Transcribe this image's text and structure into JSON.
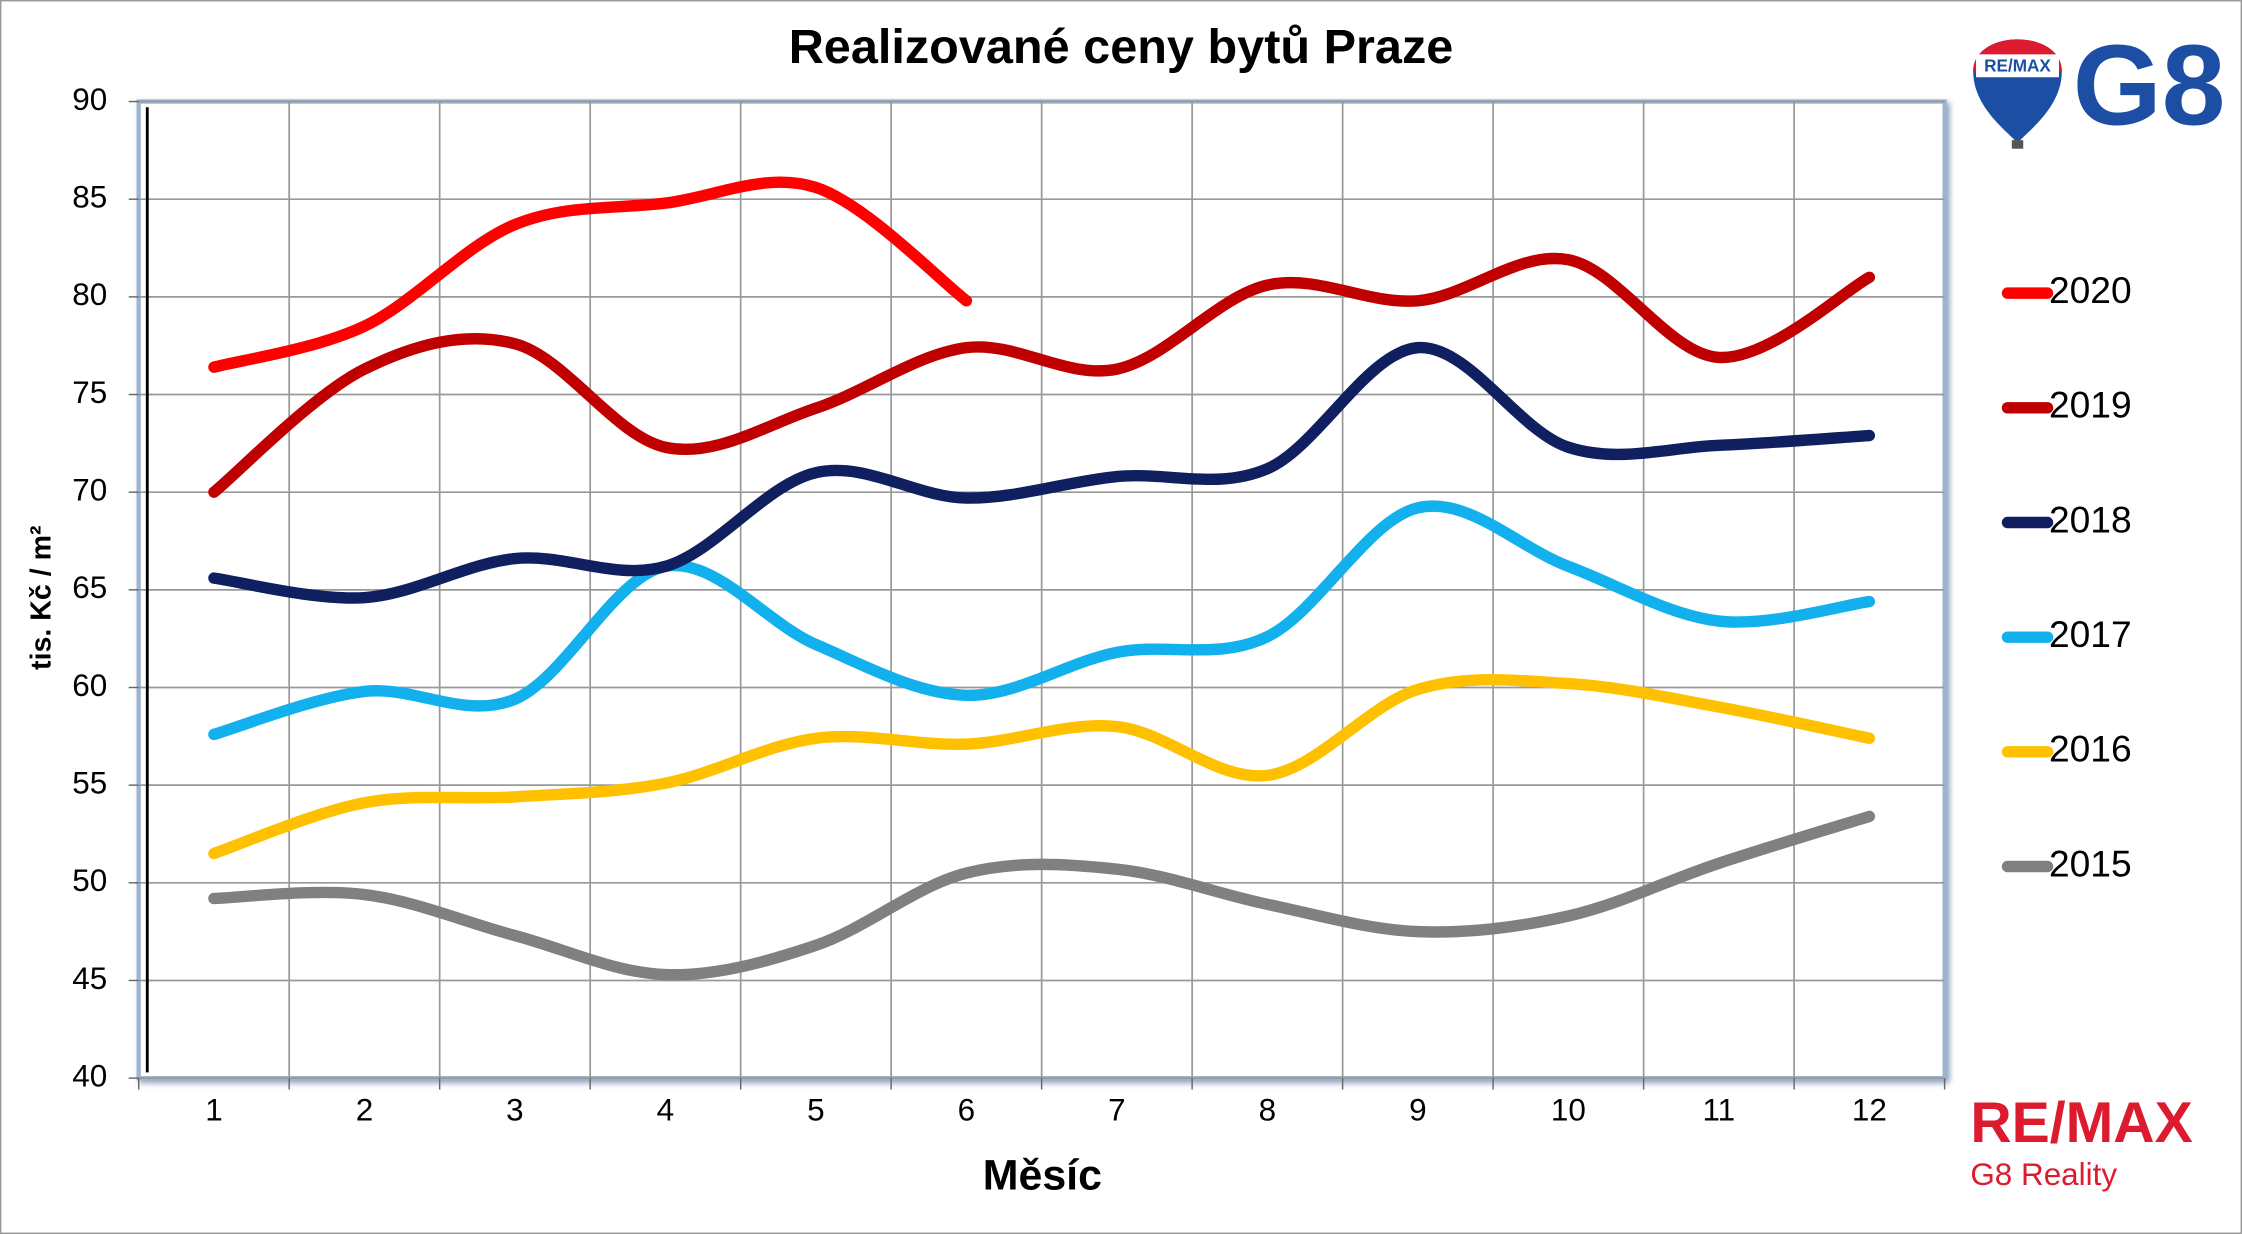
{
  "chart_data": {
    "type": "line",
    "title": "Realizované ceny bytů Praze",
    "x_label": "Měsíc",
    "y_label": "tis. Kč / m²",
    "categories": [
      "1",
      "2",
      "3",
      "4",
      "5",
      "6",
      "7",
      "8",
      "9",
      "10",
      "11",
      "12"
    ],
    "ylim": [
      40,
      90
    ],
    "yticks": [
      40,
      45,
      50,
      55,
      60,
      65,
      70,
      75,
      80,
      85,
      90
    ],
    "grid": true,
    "smooth": true,
    "legend": "right",
    "series": [
      {
        "name": "2020",
        "color": "#ff0000",
        "values": [
          76.4,
          78.5,
          83.7,
          84.8,
          85.6,
          79.8,
          null,
          null,
          null,
          null,
          null,
          null
        ]
      },
      {
        "name": "2019",
        "color": "#c00000",
        "values": [
          70,
          76.3,
          77.6,
          72.3,
          74.3,
          77.4,
          76.3,
          80.6,
          79.8,
          81.9,
          76.9,
          81.0
        ]
      },
      {
        "name": "2018",
        "color": "#0f1f5f",
        "values": [
          65.6,
          64.6,
          66.6,
          66.2,
          71.0,
          69.7,
          70.8,
          71.2,
          77.4,
          72.3,
          72.4,
          72.9
        ]
      },
      {
        "name": "2017",
        "color": "#12b0ec",
        "values": [
          57.6,
          59.8,
          59.4,
          66.2,
          62.2,
          59.6,
          61.8,
          62.6,
          69.2,
          66.2,
          63.4,
          64.4
        ]
      },
      {
        "name": "2016",
        "color": "#ffc000",
        "values": [
          51.5,
          54.1,
          54.4,
          55.1,
          57.4,
          57.1,
          58.0,
          55.5,
          59.9,
          60.2,
          59.0,
          57.4
        ]
      },
      {
        "name": "2015",
        "color": "#808080",
        "values": [
          49.2,
          49.4,
          47.3,
          45.3,
          46.8,
          50.5,
          50.7,
          48.9,
          47.5,
          48.3,
          51.0,
          53.4
        ]
      }
    ]
  },
  "logo": {
    "balloon": "RE/MAX",
    "brand": "G8"
  },
  "footer": {
    "brand": "RE/MAX",
    "company": "G8 Reality"
  }
}
